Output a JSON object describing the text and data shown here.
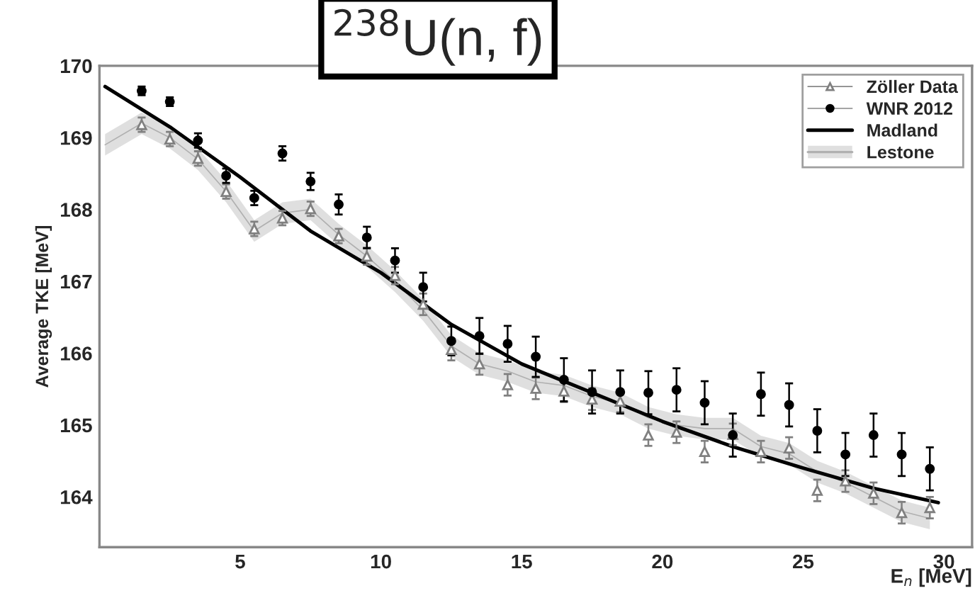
{
  "chart_data": {
    "type": "scatter",
    "title": "$^{238}$U(n, f)",
    "xlabel": "E$_{n}$ [MeV]",
    "ylabel": "Average TKE [MeV]",
    "xlim": [
      0,
      31
    ],
    "ylim": [
      163.3,
      170
    ],
    "xticks": [
      5,
      10,
      15,
      20,
      25,
      30
    ],
    "yticks": [
      164,
      165,
      166,
      167,
      168,
      169,
      170
    ],
    "grid": false,
    "legend": "top right",
    "series": [
      {
        "name": "Zöller Data",
        "marker": "triangle",
        "color": "#808080",
        "x": [
          1.5,
          2.5,
          3.5,
          4.5,
          5.5,
          6.5,
          7.5,
          8.5,
          9.5,
          10.5,
          11.5,
          12.5,
          13.5,
          14.5,
          15.5,
          16.5,
          17.5,
          18.5,
          19.5,
          20.5,
          21.5,
          22.5,
          23.5,
          24.5,
          25.5,
          26.5,
          27.5,
          28.5,
          29.5
        ],
        "values": [
          169.18,
          168.98,
          168.71,
          168.25,
          167.73,
          167.88,
          168.01,
          167.63,
          167.35,
          167.08,
          166.68,
          166.05,
          165.85,
          165.56,
          165.51,
          165.47,
          165.36,
          165.33,
          164.86,
          164.9,
          164.63,
          164.87,
          164.63,
          164.68,
          164.09,
          164.22,
          164.05,
          163.78,
          163.85
        ],
        "errors": [
          0.1,
          0.1,
          0.1,
          0.1,
          0.1,
          0.1,
          0.1,
          0.1,
          0.12,
          0.12,
          0.15,
          0.15,
          0.15,
          0.15,
          0.15,
          0.15,
          0.15,
          0.15,
          0.15,
          0.15,
          0.15,
          0.15,
          0.15,
          0.15,
          0.15,
          0.15,
          0.15,
          0.15,
          0.15
        ]
      },
      {
        "name": "WNR 2012",
        "marker": "circle",
        "color": "#000000",
        "x": [
          1.5,
          2.5,
          3.5,
          4.5,
          5.5,
          6.5,
          7.5,
          8.5,
          9.5,
          10.5,
          11.5,
          12.5,
          13.5,
          14.5,
          15.5,
          16.5,
          17.5,
          18.5,
          19.5,
          20.5,
          21.5,
          22.5,
          23.5,
          24.5,
          25.5,
          26.5,
          27.5,
          28.5,
          29.5
        ],
        "values": [
          169.65,
          169.5,
          168.96,
          168.47,
          168.16,
          168.78,
          168.39,
          168.07,
          167.61,
          167.29,
          166.92,
          166.17,
          166.24,
          166.13,
          165.95,
          165.63,
          165.46,
          165.46,
          165.45,
          165.49,
          165.31,
          164.86,
          165.43,
          165.28,
          164.92,
          164.59,
          164.86,
          164.59,
          164.39
        ],
        "errors": [
          0.06,
          0.06,
          0.1,
          0.1,
          0.1,
          0.1,
          0.12,
          0.14,
          0.15,
          0.17,
          0.2,
          0.2,
          0.25,
          0.25,
          0.28,
          0.3,
          0.3,
          0.3,
          0.3,
          0.3,
          0.3,
          0.3,
          0.3,
          0.3,
          0.3,
          0.3,
          0.3,
          0.3,
          0.3
        ]
      },
      {
        "name": "Madland",
        "type": "line",
        "color": "#000000",
        "x": [
          0.2,
          2.5,
          5,
          7.5,
          10,
          12.5,
          15,
          17.5,
          20,
          22.5,
          25,
          27.5,
          29.8
        ],
        "values": [
          169.71,
          169.15,
          168.45,
          167.7,
          167.12,
          166.4,
          165.85,
          165.45,
          165.05,
          164.7,
          164.4,
          164.12,
          163.92
        ]
      },
      {
        "name": "Lestone",
        "type": "line",
        "color": "#b0b0b0",
        "x": [
          0.2,
          1.5,
          2.5,
          3.5,
          4.5,
          5.5,
          6.5,
          7.5,
          8.5,
          9.5,
          10.5,
          11.5,
          12.5,
          13.5,
          14.5,
          15.5,
          16.5,
          17.5,
          18.5,
          19.5,
          20.5,
          21.5,
          22.5,
          23.5,
          24.5,
          25.5,
          26.5,
          27.5,
          28.5,
          29.5
        ],
        "values": [
          168.9,
          169.2,
          169.0,
          168.7,
          168.25,
          167.7,
          167.95,
          168.0,
          167.65,
          167.35,
          167.0,
          166.6,
          166.1,
          165.85,
          165.75,
          165.6,
          165.55,
          165.4,
          165.3,
          165.1,
          165.0,
          164.95,
          164.95,
          164.7,
          164.6,
          164.35,
          164.2,
          164.0,
          163.8,
          163.7
        ],
        "lower": [
          168.75,
          169.05,
          168.85,
          168.55,
          168.1,
          167.55,
          167.8,
          167.85,
          167.5,
          167.2,
          166.85,
          166.45,
          165.95,
          165.7,
          165.6,
          165.45,
          165.4,
          165.25,
          165.15,
          164.95,
          164.85,
          164.8,
          164.8,
          164.55,
          164.45,
          164.2,
          164.05,
          163.85,
          163.65,
          163.55
        ],
        "upper": [
          169.05,
          169.35,
          169.15,
          168.85,
          168.4,
          167.85,
          168.1,
          168.15,
          167.8,
          167.5,
          167.15,
          166.75,
          166.25,
          166.0,
          165.9,
          165.75,
          165.7,
          165.55,
          165.45,
          165.25,
          165.15,
          165.1,
          165.1,
          164.85,
          164.75,
          164.5,
          164.35,
          164.15,
          163.95,
          163.85
        ]
      }
    ]
  }
}
